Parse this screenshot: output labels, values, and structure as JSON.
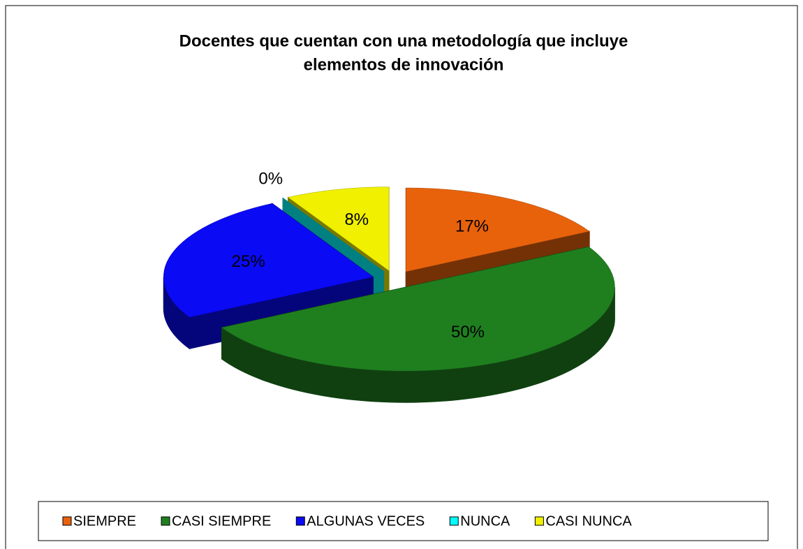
{
  "chart_data": {
    "type": "pie3d",
    "title": [
      "Docentes que cuentan con una metodología que incluye",
      "elementos de innovación"
    ],
    "categories": [
      "SIEMPRE",
      "CASI SIEMPRE",
      "ALGUNAS VECES",
      "NUNCA",
      "CASI NUNCA"
    ],
    "values": [
      17,
      50,
      25,
      0,
      8
    ],
    "value_labels": [
      "17%",
      "50%",
      "25%",
      "0%",
      "8%"
    ],
    "colors": [
      "#e8620c",
      "#1f7f1f",
      "#0a0af5",
      "#00ffff",
      "#f0f000"
    ],
    "legend": "bottom"
  }
}
